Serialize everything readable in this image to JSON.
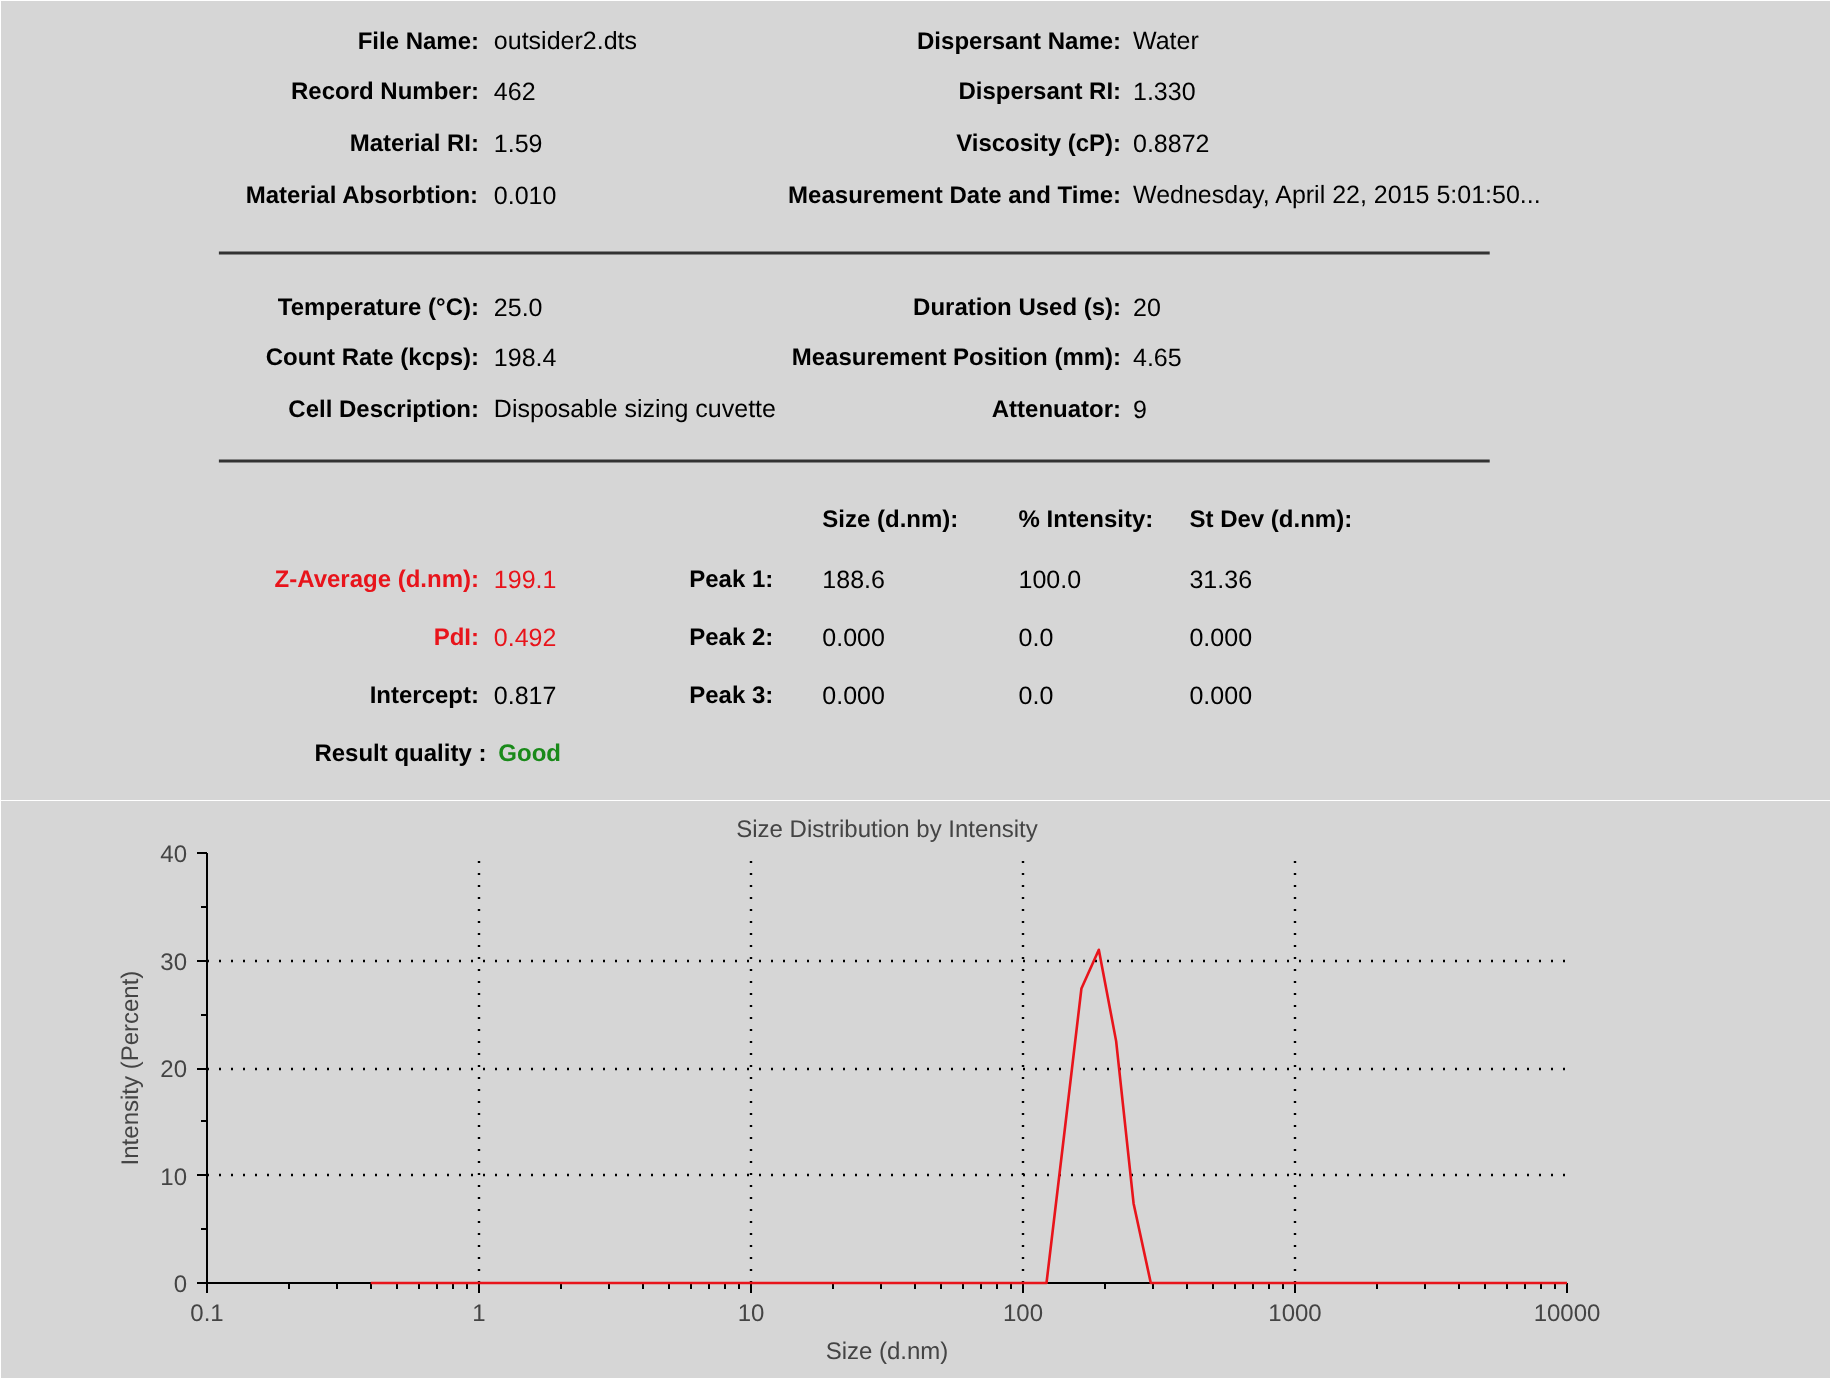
{
  "chart_data": [
    {
      "type": "other",
      "annotations": [
        "File Name:",
        "outsider2.dts",
        "Record Number:",
        "462",
        "Material RI:",
        "1.59",
        "Material Absorbtion:",
        "0.010",
        "Dispersant Name:",
        "Water",
        "Dispersant RI:",
        "1.330",
        "Viscosity (cP):",
        "0.8872",
        "Measurement Date and Time:",
        "Wednesday, April 22, 2015 5:01:50...",
        "Temperature (°C):",
        "25.0",
        "Count Rate (kcps):",
        "198.4",
        "Cell Description:",
        "Disposable sizing cuvette",
        "Duration Used (s):",
        "20",
        "Measurement Position (mm):",
        "4.65",
        "Attenuator:",
        "9",
        "Size (d.nm):",
        "% Intensity:",
        "St Dev (d.nm):",
        "Z-Average (d.nm):",
        "199.1",
        "PdI:",
        "0.492",
        "Intercept:",
        "0.817",
        "Result quality :",
        "Good",
        "Peak 1:",
        "188.6",
        "100.0",
        "31.36",
        "Peak 2:",
        "0.000",
        "0.0",
        "0.000",
        "Peak 3:",
        "0.000",
        "0.0",
        "0.000"
      ]
    },
    {
      "type": "line",
      "title": "Size Distribution by Intensity",
      "xlabel": "Size (d.nm)",
      "ylabel": "Intensity (Percent)",
      "x": [
        0.4,
        122,
        142,
        164,
        190,
        220,
        255,
        295,
        10000
      ],
      "series": [
        {
          "color": "#e8141b",
          "values": [
            0,
            0,
            14,
            27.4,
            31,
            22.5,
            7.4,
            0,
            0
          ]
        }
      ],
      "log": "x",
      "xlim": [
        0.1,
        10000
      ],
      "xticks": [
        0.1,
        1,
        10,
        100,
        1000,
        10000
      ],
      "ylim": [
        0,
        40
      ],
      "yticks": [
        0,
        10,
        20,
        30,
        40
      ],
      "grid": true,
      "line_style": "solid"
    }
  ]
}
